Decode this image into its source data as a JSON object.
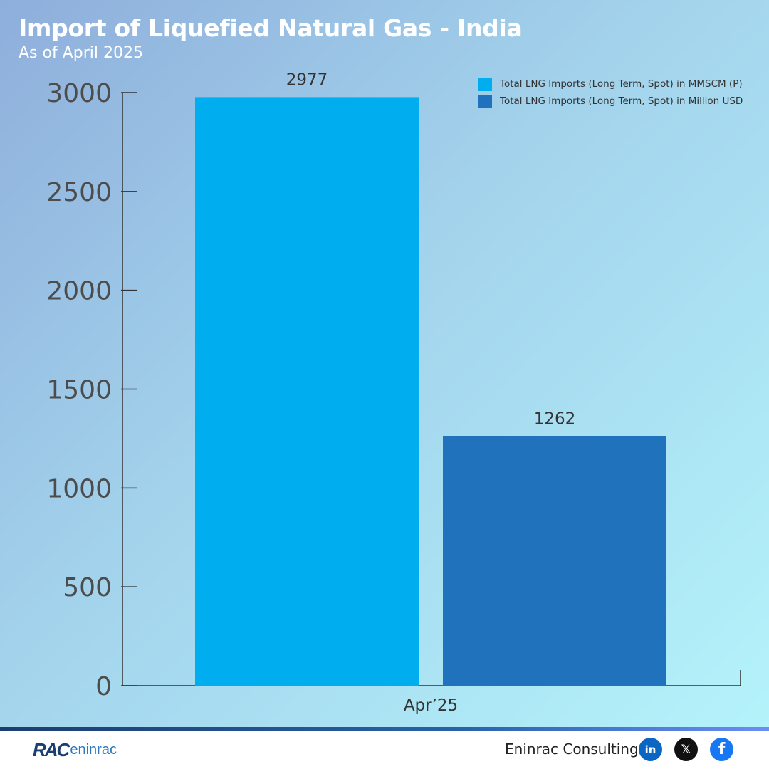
{
  "header": {
    "title": "Import of Liquefied Natural Gas - India",
    "subtitle": "As of April 2025"
  },
  "chart_data": {
    "type": "bar",
    "categories": [
      "Apr’25"
    ],
    "series": [
      {
        "name": "Total LNG Imports (Long Term, Spot) in MMSCM (P)",
        "values": [
          2977
        ],
        "color": "#00aeef"
      },
      {
        "name": "Total LNG Imports (Long Term, Spot) in Million USD",
        "values": [
          1262
        ],
        "color": "#1f72bb"
      }
    ],
    "ylim": [
      0,
      3000
    ],
    "yticks": [
      "0",
      "500",
      "1000",
      "1500",
      "2000",
      "2500",
      "3000"
    ],
    "data_labels": [
      "2977",
      "1262"
    ],
    "legend_position": "top-right",
    "grid": false
  },
  "footer": {
    "logo_rac": "RAC",
    "logo_eninrac": "eninrac",
    "company": "Eninrac Consulting",
    "social": [
      {
        "icon": "linkedin-icon",
        "glyph": "in",
        "color": "#0a66c2"
      },
      {
        "icon": "x-icon",
        "glyph": "𝕏",
        "color": "#111111"
      },
      {
        "icon": "facebook-icon",
        "glyph": "f",
        "color": "#1877f2"
      }
    ]
  }
}
